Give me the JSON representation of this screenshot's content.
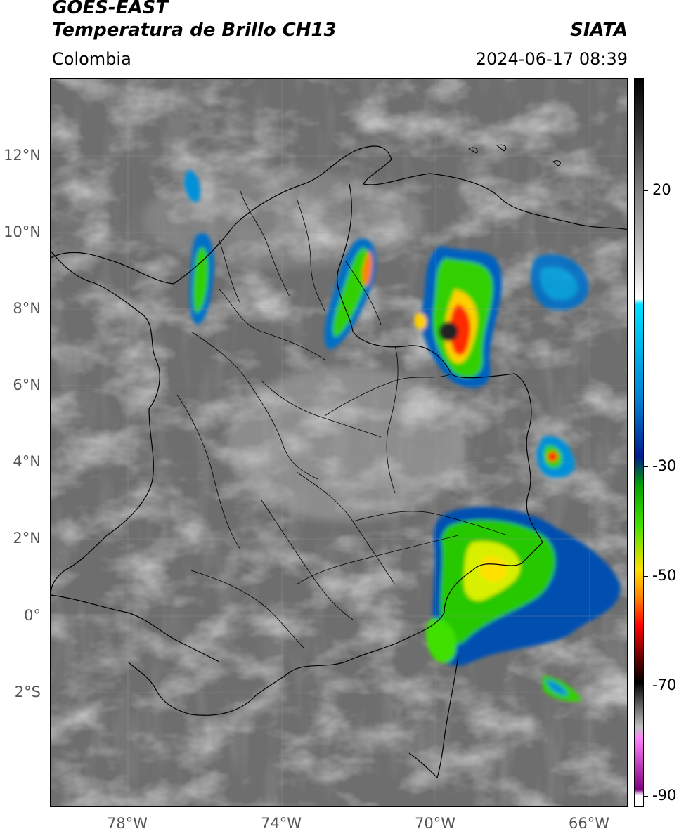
{
  "header": {
    "satellite": "GOES-EAST",
    "product": "Temperatura de Brillo CH13",
    "agency": "SIATA",
    "region": "Colombia",
    "timestamp": "2024-06-17 08:39"
  },
  "map": {
    "lat_labels": [
      "12°N",
      "10°N",
      "8°N",
      "6°N",
      "4°N",
      "2°N",
      "0°",
      "2°S"
    ],
    "lon_labels": [
      "78°W",
      "74°W",
      "70°W",
      "66°W"
    ],
    "lat_values": [
      12,
      10,
      8,
      6,
      4,
      2,
      0,
      -2
    ],
    "lon_values": [
      -78,
      -74,
      -70,
      -66
    ],
    "extent": {
      "lon_min": -80,
      "lon_max": -65,
      "lat_min": -5,
      "lat_max": 14
    },
    "background": "#6e6e6e"
  },
  "colorbar": {
    "tick_labels": [
      "20",
      "-30",
      "-50",
      "-70",
      "-90"
    ],
    "tick_values": [
      20,
      -30,
      -50,
      -70,
      -90
    ],
    "range": [
      -92,
      37
    ],
    "stops": [
      {
        "value": 37,
        "color": "#000000"
      },
      {
        "value": 28,
        "color": "#333333"
      },
      {
        "value": 18,
        "color": "#7a7a7a"
      },
      {
        "value": 5,
        "color": "#c8c8c8"
      },
      {
        "value": -2,
        "color": "#ffffff"
      },
      {
        "value": -3,
        "color": "#00e0ff"
      },
      {
        "value": -20,
        "color": "#0080d0"
      },
      {
        "value": -30,
        "color": "#001a90"
      },
      {
        "value": -35,
        "color": "#00a000"
      },
      {
        "value": -42,
        "color": "#40e000"
      },
      {
        "value": -50,
        "color": "#ffe000"
      },
      {
        "value": -55,
        "color": "#ff8000"
      },
      {
        "value": -60,
        "color": "#ff0000"
      },
      {
        "value": -66,
        "color": "#600000"
      },
      {
        "value": -70,
        "color": "#000000"
      },
      {
        "value": -78,
        "color": "#c0c0c0"
      },
      {
        "value": -80,
        "color": "#ff80ff"
      },
      {
        "value": -89,
        "color": "#800080"
      },
      {
        "value": -90,
        "color": "#ffffff"
      }
    ]
  }
}
